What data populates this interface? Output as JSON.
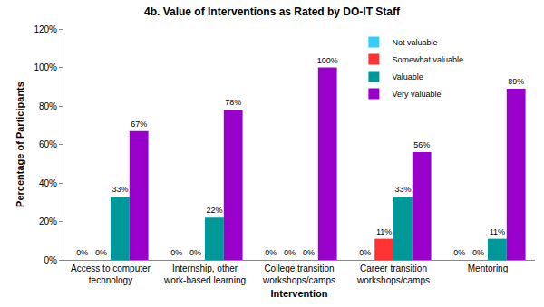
{
  "chart_data": {
    "type": "bar",
    "title": "4b. Value of Interventions as Rated by DO-IT Staff",
    "x_label": "Intervention",
    "y_label": "Percentage of Participants",
    "categories": [
      "Access to computer technology",
      "Internship, other work-based learning",
      "College transition workshops/camps",
      "Career transition workshops/camps",
      "Mentoring"
    ],
    "series": [
      {
        "name": "Not valuable",
        "color": "#33ccff",
        "values": [
          0,
          0,
          0,
          0,
          0
        ],
        "value_labels": [
          "0%",
          "0%",
          "0%",
          "0%",
          "0%"
        ]
      },
      {
        "name": "Somewhat valuable",
        "color": "#ff3333",
        "values": [
          0,
          0,
          0,
          11,
          0
        ],
        "value_labels": [
          "0%",
          "0%",
          "0%",
          "11%",
          "0%"
        ]
      },
      {
        "name": "Valuable",
        "color": "#009999",
        "values": [
          33,
          22,
          0,
          33,
          11
        ],
        "value_labels": [
          "33%",
          "22%",
          "0%",
          "33%",
          "11%"
        ]
      },
      {
        "name": "Very valuable",
        "color": "#9900cc",
        "values": [
          67,
          78,
          100,
          56,
          89
        ],
        "value_labels": [
          "67%",
          "78%",
          "100%",
          "56%",
          "89%"
        ]
      }
    ],
    "ylim": [
      0,
      120
    ],
    "yticks": [
      {
        "value": 0,
        "label": "0%"
      },
      {
        "value": 20,
        "label": "20%"
      },
      {
        "value": 40,
        "label": "40%"
      },
      {
        "value": 60,
        "label": "60%"
      },
      {
        "value": 80,
        "label": "80%"
      },
      {
        "value": 100,
        "label": "100%"
      },
      {
        "value": 120,
        "label": "120%"
      }
    ],
    "grid": false,
    "legend": "top",
    "data_labels": true
  }
}
